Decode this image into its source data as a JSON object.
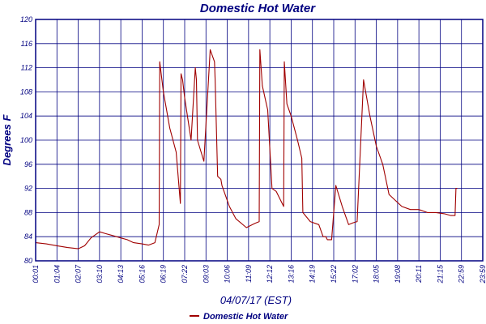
{
  "chart_data": {
    "type": "line",
    "title": "Domestic Hot Water",
    "xlabel": "04/07/17 (EST)",
    "ylabel": "Degrees F",
    "ylim": [
      80,
      120
    ],
    "yticks": [
      80,
      84,
      88,
      92,
      96,
      100,
      104,
      108,
      112,
      116,
      120
    ],
    "x_tick_labels": [
      "00:01",
      "01:04",
      "02:07",
      "03:10",
      "04:13",
      "05:16",
      "06:19",
      "07:22",
      "09:03",
      "10:06",
      "11:09",
      "12:12",
      "13:16",
      "14:19",
      "15:22",
      "17:02",
      "18:05",
      "19:08",
      "20:11",
      "21:15",
      "22:59",
      "23:59"
    ],
    "grid": true,
    "legend_position": "bottom-center",
    "colors": {
      "series": "#a00000",
      "text": "#000080",
      "grid": "#000080",
      "frame": "#000080"
    },
    "series": [
      {
        "name": "Domestic Hot Water",
        "x": [
          0,
          0.5,
          1.0,
          1.5,
          2.0,
          2.3,
          2.6,
          3.0,
          3.3,
          3.6,
          4.0,
          4.3,
          4.6,
          5.0,
          5.3,
          5.6,
          5.8,
          5.83,
          6.0,
          6.3,
          6.6,
          6.8,
          6.83,
          6.9,
          7.0,
          7.3,
          7.5,
          7.55,
          7.6,
          7.9,
          8.2,
          8.4,
          8.43,
          8.55,
          8.7,
          8.75,
          8.85,
          9.1,
          9.4,
          9.9,
          10.3,
          10.5,
          10.53,
          10.65,
          10.9,
          11.1,
          11.3,
          11.65,
          11.68,
          11.8,
          12.0,
          12.3,
          12.5,
          12.55,
          12.9,
          13.3,
          13.5,
          13.6,
          13.63,
          13.7,
          13.9,
          14.1,
          14.4,
          14.6,
          14.65,
          14.7,
          14.9,
          15.1,
          15.4,
          15.7,
          16.0,
          16.3,
          16.6,
          16.9,
          17.2,
          17.6,
          18.0,
          18.4,
          18.8,
          19.2,
          19.5,
          19.7,
          19.74,
          19.8
        ],
        "y": [
          83.0,
          82.8,
          82.5,
          82.2,
          82.0,
          82.5,
          83.8,
          84.8,
          84.5,
          84.2,
          83.8,
          83.5,
          83.0,
          82.8,
          82.6,
          83.0,
          86,
          113,
          108,
          102,
          98,
          89.5,
          111,
          110,
          107,
          100,
          112,
          110,
          100,
          96.5,
          115,
          113,
          110,
          94,
          93.5,
          92.5,
          91.5,
          89,
          87,
          85.5,
          86.2,
          86.5,
          115,
          109,
          105,
          92,
          91.5,
          89,
          113,
          106,
          104,
          100,
          97,
          88,
          86.5,
          86,
          84,
          84,
          84,
          83.5,
          83.5,
          92.5,
          89,
          87,
          86.5,
          86,
          86.3,
          86.5,
          110,
          104,
          99,
          96,
          91,
          90,
          89,
          88.5,
          88.5,
          88,
          88,
          87.8,
          87.5,
          87.5,
          92,
          92
        ]
      }
    ]
  }
}
